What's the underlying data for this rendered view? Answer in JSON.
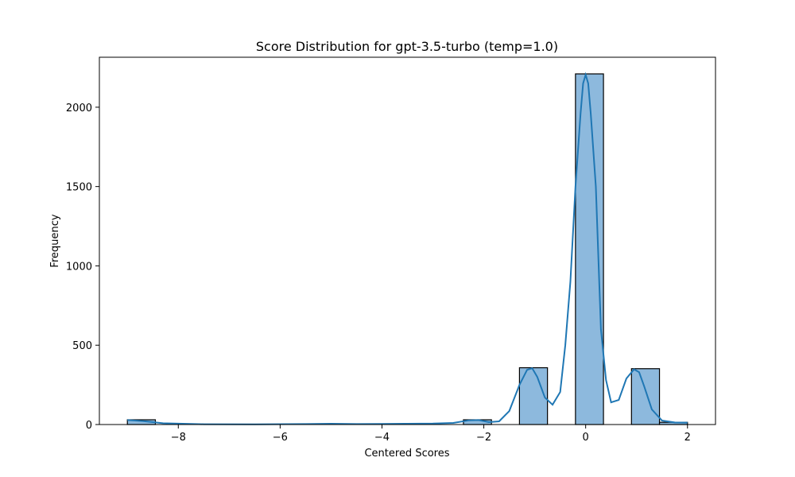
{
  "chart_data": {
    "type": "bar",
    "subtype": "histogram-with-kde",
    "title": "Score Distribution for gpt-3.5-turbo (temp=1.0)",
    "xlabel": "Centered Scores",
    "ylabel": "Frequency",
    "xlim": [
      -9.55,
      2.55
    ],
    "ylim": [
      0,
      2315
    ],
    "x_ticks": [
      -8,
      -6,
      -4,
      -2,
      0,
      2
    ],
    "x_tick_labels": [
      "−8",
      "−6",
      "−4",
      "−2",
      "0",
      "2"
    ],
    "y_ticks": [
      0,
      500,
      1000,
      1500,
      2000
    ],
    "y_tick_labels": [
      "0",
      "500",
      "1000",
      "1500",
      "2000"
    ],
    "bars": [
      {
        "x0": -9.0,
        "x1": -8.45,
        "value": 30
      },
      {
        "x0": -2.4,
        "x1": -1.85,
        "value": 30
      },
      {
        "x0": -1.3,
        "x1": -0.75,
        "value": 358
      },
      {
        "x0": -0.2,
        "x1": 0.35,
        "value": 2210
      },
      {
        "x0": 0.9,
        "x1": 1.45,
        "value": 352
      },
      {
        "x0": 1.45,
        "x1": 2.0,
        "value": 14
      }
    ],
    "kde": {
      "x": [
        -9.0,
        -8.7,
        -8.3,
        -7.5,
        -6.5,
        -5.5,
        -5.0,
        -4.5,
        -4.0,
        -3.5,
        -3.0,
        -2.6,
        -2.3,
        -2.1,
        -1.9,
        -1.7,
        -1.5,
        -1.3,
        -1.15,
        -1.05,
        -0.95,
        -0.8,
        -0.65,
        -0.5,
        -0.4,
        -0.3,
        -0.2,
        -0.1,
        -0.05,
        0.0,
        0.05,
        0.1,
        0.2,
        0.3,
        0.4,
        0.5,
        0.65,
        0.8,
        0.95,
        1.05,
        1.15,
        1.3,
        1.5,
        1.75,
        2.0
      ],
      "y": [
        28,
        22,
        8,
        2,
        1,
        3,
        5,
        3,
        4,
        5,
        6,
        10,
        26,
        28,
        15,
        20,
        85,
        250,
        345,
        355,
        300,
        170,
        125,
        205,
        500,
        900,
        1500,
        1960,
        2150,
        2205,
        2150,
        1960,
        1500,
        600,
        280,
        140,
        155,
        290,
        348,
        330,
        240,
        95,
        25,
        13,
        12
      ]
    },
    "colors": {
      "bar_fill": "#8db9dd",
      "kde_line": "#1f77b4"
    },
    "grid": false,
    "legend": "none"
  }
}
